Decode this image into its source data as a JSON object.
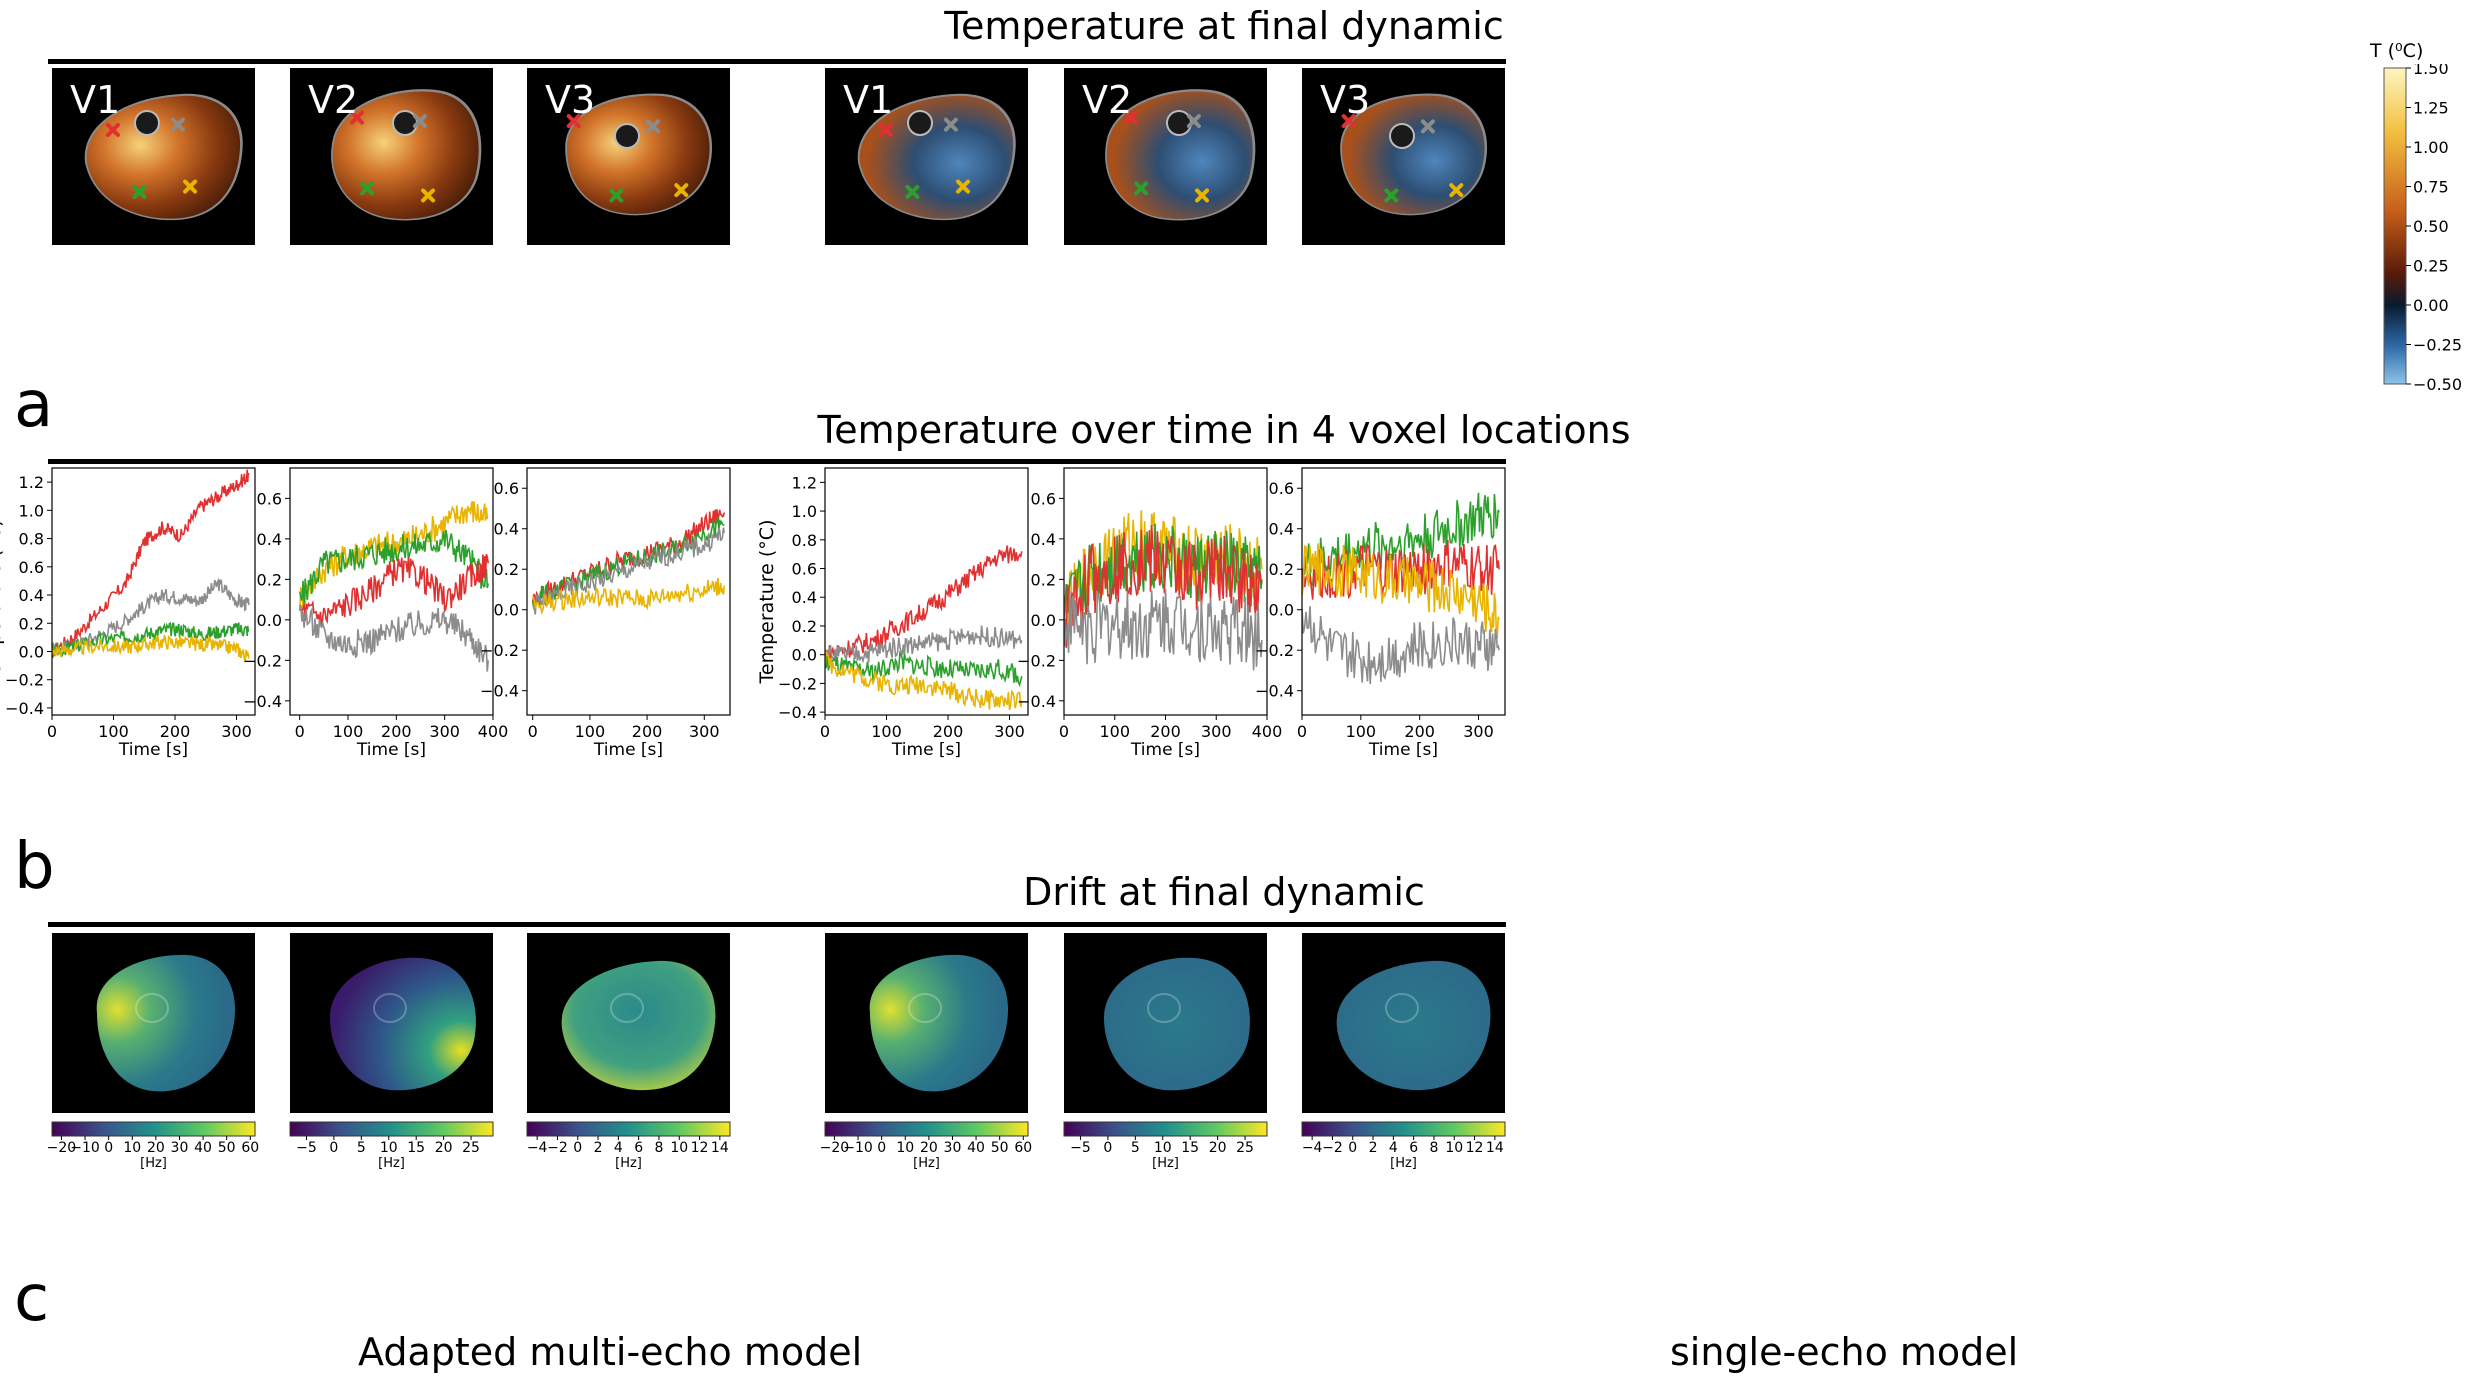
{
  "sections": {
    "a_title": "Temperature at final dynamic",
    "b_title": "Temperature over time in 4 voxel locations",
    "c_title": "Drift at final dynamic"
  },
  "panel_letters": {
    "a": "a",
    "b": "b",
    "c": "c"
  },
  "volume_labels": [
    "V1",
    "V2",
    "V3",
    "V1",
    "V2",
    "V3"
  ],
  "colorbar_temperature": {
    "title": "T (⁰C)",
    "ticks": [
      "1.50",
      "1.25",
      "1.00",
      "0.75",
      "0.50",
      "0.25",
      "0.00",
      "−0.25",
      "−0.50"
    ]
  },
  "model_labels": {
    "left": "Adapted multi-echo model",
    "right": "single-echo model"
  },
  "marker_colors": {
    "red": "#e03030",
    "gray": "#8c8c8c",
    "green": "#2ca02c",
    "yellow": "#e8b400"
  },
  "chart_data": [
    {
      "type": "line",
      "model": "multi-echo",
      "volume": "V1",
      "xlabel": "Time [s]",
      "ylabel": "Temperature (°C)",
      "xlim": [
        0,
        330
      ],
      "ylim": [
        -0.45,
        1.3
      ],
      "xticks": [
        0,
        100,
        200,
        300
      ],
      "yticks": [
        -0.4,
        -0.2,
        0.0,
        0.2,
        0.4,
        0.6,
        0.8,
        1.0,
        1.2
      ],
      "yticklabels": [
        "−0.4",
        "−0.2",
        "0.0",
        "0.2",
        "0.4",
        "0.6",
        "0.8",
        "1.0",
        "1.2"
      ],
      "series": [
        {
          "name": "red",
          "x": [
            0,
            40,
            80,
            120,
            150,
            180,
            210,
            240,
            270,
            300,
            320
          ],
          "values": [
            0.0,
            0.12,
            0.3,
            0.48,
            0.78,
            0.88,
            0.82,
            1.02,
            1.1,
            1.18,
            1.25
          ]
        },
        {
          "name": "gray",
          "x": [
            0,
            40,
            80,
            120,
            150,
            180,
            210,
            240,
            270,
            300,
            320
          ],
          "values": [
            0.0,
            0.05,
            0.12,
            0.22,
            0.32,
            0.4,
            0.38,
            0.36,
            0.48,
            0.36,
            0.33
          ]
        },
        {
          "name": "green",
          "x": [
            0,
            40,
            80,
            120,
            150,
            180,
            210,
            240,
            270,
            300,
            320
          ],
          "values": [
            0.0,
            0.04,
            0.08,
            0.1,
            0.12,
            0.15,
            0.16,
            0.12,
            0.14,
            0.16,
            0.15
          ]
        },
        {
          "name": "yellow",
          "x": [
            0,
            40,
            80,
            120,
            150,
            180,
            210,
            240,
            270,
            300,
            320
          ],
          "values": [
            0.0,
            0.02,
            0.04,
            0.03,
            0.05,
            0.07,
            0.06,
            0.05,
            0.04,
            0.02,
            -0.05
          ]
        }
      ]
    },
    {
      "type": "line",
      "model": "multi-echo",
      "volume": "V2",
      "xlabel": "Time [s]",
      "ylabel": "",
      "xlim": [
        -20,
        400
      ],
      "ylim": [
        -0.47,
        0.75
      ],
      "xticks": [
        0,
        100,
        200,
        300,
        400
      ],
      "yticks": [
        -0.4,
        -0.2,
        0.0,
        0.2,
        0.4,
        0.6
      ],
      "yticklabels": [
        "−0.4",
        "−0.2",
        "0.0",
        "0.2",
        "0.4",
        "0.6"
      ],
      "series": [
        {
          "name": "yellow",
          "x": [
            0,
            50,
            100,
            150,
            200,
            250,
            300,
            350,
            390
          ],
          "values": [
            0.1,
            0.25,
            0.32,
            0.36,
            0.38,
            0.42,
            0.48,
            0.55,
            0.5
          ]
        },
        {
          "name": "green",
          "x": [
            0,
            50,
            100,
            150,
            200,
            250,
            300,
            350,
            390
          ],
          "values": [
            0.1,
            0.28,
            0.3,
            0.33,
            0.35,
            0.37,
            0.4,
            0.3,
            0.18
          ]
        },
        {
          "name": "red",
          "x": [
            0,
            50,
            100,
            150,
            200,
            250,
            300,
            350,
            390
          ],
          "values": [
            0.05,
            0.02,
            0.08,
            0.15,
            0.25,
            0.22,
            0.1,
            0.2,
            0.28
          ]
        },
        {
          "name": "gray",
          "x": [
            0,
            50,
            100,
            150,
            200,
            250,
            300,
            350,
            390
          ],
          "values": [
            0.05,
            -0.08,
            -0.12,
            -0.1,
            -0.05,
            -0.02,
            0.0,
            -0.08,
            -0.2
          ]
        }
      ]
    },
    {
      "type": "line",
      "model": "multi-echo",
      "volume": "V3",
      "xlabel": "Time [s]",
      "ylabel": "",
      "xlim": [
        -10,
        345
      ],
      "ylim": [
        -0.52,
        0.7
      ],
      "xticks": [
        0,
        100,
        200,
        300
      ],
      "yticks": [
        -0.4,
        -0.2,
        0.0,
        0.2,
        0.4,
        0.6
      ],
      "yticklabels": [
        "−0.4",
        "−0.2",
        "0.0",
        "0.2",
        "0.4",
        "0.6"
      ],
      "series": [
        {
          "name": "red",
          "x": [
            0,
            50,
            100,
            150,
            200,
            250,
            300,
            335
          ],
          "values": [
            0.05,
            0.12,
            0.18,
            0.24,
            0.28,
            0.32,
            0.42,
            0.48
          ]
        },
        {
          "name": "green",
          "x": [
            0,
            50,
            100,
            150,
            200,
            250,
            300,
            335
          ],
          "values": [
            0.05,
            0.1,
            0.16,
            0.22,
            0.26,
            0.3,
            0.38,
            0.42
          ]
        },
        {
          "name": "gray",
          "x": [
            0,
            50,
            100,
            150,
            200,
            250,
            300,
            335
          ],
          "values": [
            0.02,
            0.08,
            0.13,
            0.18,
            0.23,
            0.28,
            0.32,
            0.38
          ]
        },
        {
          "name": "yellow",
          "x": [
            0,
            50,
            100,
            150,
            200,
            250,
            300,
            335
          ],
          "values": [
            0.02,
            0.05,
            0.06,
            0.06,
            0.05,
            0.08,
            0.1,
            0.12
          ]
        }
      ]
    },
    {
      "type": "line",
      "model": "single-echo",
      "volume": "V1",
      "xlabel": "Time [s]",
      "ylabel": "Temperature (°C)",
      "xlim": [
        0,
        330
      ],
      "ylim": [
        -0.42,
        1.3
      ],
      "xticks": [
        0,
        100,
        200,
        300
      ],
      "yticks": [
        -0.4,
        -0.2,
        0.0,
        0.2,
        0.4,
        0.6,
        0.8,
        1.0,
        1.2
      ],
      "yticklabels": [
        "−0.4",
        "−0.2",
        "0.0",
        "0.2",
        "0.4",
        "0.6",
        "0.8",
        "1.0",
        "1.2"
      ],
      "series": [
        {
          "name": "red",
          "x": [
            0,
            40,
            80,
            120,
            160,
            200,
            240,
            280,
            320
          ],
          "values": [
            0.0,
            0.05,
            0.1,
            0.2,
            0.3,
            0.42,
            0.55,
            0.68,
            0.72
          ]
        },
        {
          "name": "gray",
          "x": [
            0,
            40,
            80,
            120,
            160,
            200,
            240,
            280,
            320
          ],
          "values": [
            0.0,
            0.0,
            0.02,
            0.06,
            0.08,
            0.1,
            0.14,
            0.12,
            0.1
          ]
        },
        {
          "name": "green",
          "x": [
            0,
            40,
            80,
            120,
            160,
            200,
            240,
            280,
            320
          ],
          "values": [
            -0.05,
            -0.1,
            -0.12,
            -0.05,
            -0.08,
            -0.1,
            -0.12,
            -0.1,
            -0.15
          ]
        },
        {
          "name": "yellow",
          "x": [
            0,
            40,
            80,
            120,
            160,
            200,
            240,
            280,
            320
          ],
          "values": [
            -0.05,
            -0.12,
            -0.18,
            -0.22,
            -0.2,
            -0.25,
            -0.3,
            -0.32,
            -0.32
          ]
        }
      ]
    },
    {
      "type": "line",
      "model": "single-echo",
      "volume": "V2",
      "xlabel": "Time [s]",
      "ylabel": "",
      "xlim": [
        0,
        400
      ],
      "ylim": [
        -0.47,
        0.75
      ],
      "xticks": [
        0,
        100,
        200,
        300,
        400
      ],
      "yticks": [
        -0.4,
        -0.2,
        0.0,
        0.2,
        0.4,
        0.6
      ],
      "yticklabels": [
        "−0.4",
        "−0.2",
        "0.0",
        "0.2",
        "0.4",
        "0.6"
      ],
      "series": [
        {
          "name": "yellow",
          "x": [
            0,
            50,
            100,
            150,
            200,
            250,
            300,
            350,
            390
          ],
          "values": [
            0.0,
            0.25,
            0.32,
            0.4,
            0.35,
            0.3,
            0.32,
            0.28,
            0.25
          ]
        },
        {
          "name": "green",
          "x": [
            0,
            50,
            100,
            150,
            200,
            250,
            300,
            350,
            390
          ],
          "values": [
            0.0,
            0.22,
            0.28,
            0.32,
            0.3,
            0.25,
            0.28,
            0.24,
            0.2
          ]
        },
        {
          "name": "red",
          "x": [
            0,
            50,
            100,
            150,
            200,
            250,
            300,
            350,
            390
          ],
          "values": [
            0.0,
            0.2,
            0.26,
            0.3,
            0.28,
            0.22,
            0.25,
            0.2,
            0.18
          ]
        },
        {
          "name": "gray",
          "x": [
            0,
            50,
            100,
            150,
            200,
            250,
            300,
            350,
            390
          ],
          "values": [
            0.0,
            -0.05,
            -0.02,
            -0.04,
            0.0,
            -0.02,
            -0.05,
            -0.05,
            -0.1
          ]
        }
      ]
    },
    {
      "type": "line",
      "model": "single-echo",
      "volume": "V3",
      "xlabel": "Time [s]",
      "ylabel": "",
      "xlim": [
        0,
        345
      ],
      "ylim": [
        -0.52,
        0.7
      ],
      "xticks": [
        0,
        100,
        200,
        300
      ],
      "yticks": [
        -0.4,
        -0.2,
        0.0,
        0.2,
        0.4,
        0.6
      ],
      "yticklabels": [
        "−0.4",
        "−0.2",
        "0.0",
        "0.2",
        "0.4",
        "0.6"
      ],
      "series": [
        {
          "name": "green",
          "x": [
            0,
            50,
            100,
            150,
            200,
            250,
            300,
            335
          ],
          "values": [
            0.2,
            0.25,
            0.3,
            0.32,
            0.35,
            0.4,
            0.45,
            0.48
          ]
        },
        {
          "name": "red",
          "x": [
            0,
            50,
            100,
            150,
            200,
            250,
            300,
            335
          ],
          "values": [
            0.15,
            0.18,
            0.2,
            0.18,
            0.2,
            0.22,
            0.2,
            0.2
          ]
        },
        {
          "name": "yellow",
          "x": [
            0,
            50,
            100,
            150,
            200,
            250,
            300,
            335
          ],
          "values": [
            0.2,
            0.2,
            0.18,
            0.15,
            0.12,
            0.1,
            0.05,
            -0.05
          ]
        },
        {
          "name": "gray",
          "x": [
            0,
            50,
            100,
            150,
            200,
            250,
            300,
            335
          ],
          "values": [
            0.0,
            -0.2,
            -0.25,
            -0.22,
            -0.18,
            -0.15,
            -0.18,
            -0.2
          ]
        }
      ]
    }
  ],
  "drift_colorbars": [
    {
      "unit": "[Hz]",
      "min": -24,
      "max": 62,
      "ticks": [
        -20,
        -10,
        0,
        10,
        20,
        30,
        40,
        50,
        60
      ],
      "labels": [
        "−20",
        "−10",
        "0",
        "10",
        "20",
        "30",
        "40",
        "50",
        "60"
      ]
    },
    {
      "unit": "[Hz]",
      "min": -8,
      "max": 29,
      "ticks": [
        -5,
        0,
        5,
        10,
        15,
        20,
        25
      ],
      "labels": [
        "−5",
        "0",
        "5",
        "10",
        "15",
        "20",
        "25"
      ]
    },
    {
      "unit": "[Hz]",
      "min": -5,
      "max": 15,
      "ticks": [
        -4,
        -2,
        0,
        2,
        4,
        6,
        8,
        10,
        12,
        14
      ],
      "labels": [
        "−4",
        "−2",
        "0",
        "2",
        "4",
        "6",
        "8",
        "10",
        "12",
        "14"
      ]
    },
    {
      "unit": "[Hz]",
      "min": -24,
      "max": 62,
      "ticks": [
        -20,
        -10,
        0,
        10,
        20,
        30,
        40,
        50,
        60
      ],
      "labels": [
        "−20",
        "−10",
        "0",
        "10",
        "20",
        "30",
        "40",
        "50",
        "60"
      ]
    },
    {
      "unit": "[Hz]",
      "min": -8,
      "max": 29,
      "ticks": [
        -5,
        0,
        5,
        10,
        15,
        20,
        25
      ],
      "labels": [
        "−5",
        "0",
        "5",
        "10",
        "15",
        "20",
        "25"
      ]
    },
    {
      "unit": "[Hz]",
      "min": -5,
      "max": 15,
      "ticks": [
        -4,
        -2,
        0,
        2,
        4,
        6,
        8,
        10,
        12,
        14
      ],
      "labels": [
        "−4",
        "−2",
        "0",
        "2",
        "4",
        "6",
        "8",
        "10",
        "12",
        "14"
      ]
    }
  ]
}
